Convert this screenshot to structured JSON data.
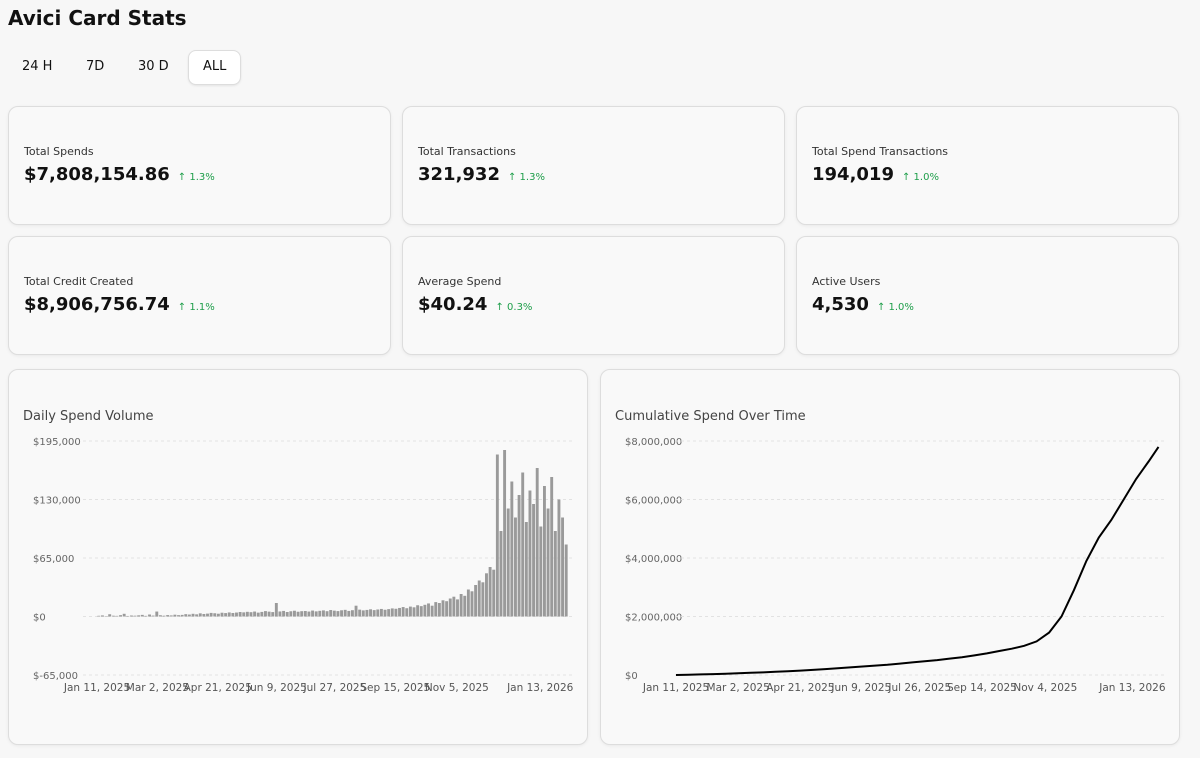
{
  "title": "Avici Card Stats",
  "tabs": [
    "24 H",
    "7D",
    "30 D",
    "ALL"
  ],
  "active_tab": 3,
  "cards": [
    {
      "label": "Total Spends",
      "value": "$7,808,154.86",
      "change": "1.3%"
    },
    {
      "label": "Total Transactions",
      "value": "321,932",
      "change": "1.3%"
    },
    {
      "label": "Total Spend Transactions",
      "value": "194,019",
      "change": "1.0%"
    },
    {
      "label": "Total Credit Created",
      "value": "$8,906,756.74",
      "change": "1.1%"
    },
    {
      "label": "Average Spend",
      "value": "$40.24",
      "change": "0.3%"
    },
    {
      "label": "Active Users",
      "value": "4,530",
      "change": "1.0%"
    }
  ],
  "chart_data": [
    {
      "type": "bar",
      "title": "Daily Spend Volume",
      "color": "#9a9a9a",
      "grid": true,
      "values": [
        800,
        1200,
        500,
        2500,
        900,
        700,
        1500,
        3000,
        600,
        1100,
        900,
        1300,
        1800,
        700,
        2200,
        1000,
        5500,
        1400,
        900,
        1600,
        1200,
        2000,
        1500,
        1800,
        2600,
        2200,
        3000,
        2400,
        3500,
        2800,
        3200,
        4000,
        3600,
        3100,
        4200,
        3800,
        4500,
        3900,
        4400,
        5000,
        4600,
        5200,
        4800,
        5500,
        4300,
        5100,
        6000,
        5400,
        4900,
        15000,
        5600,
        6200,
        5000,
        5800,
        6400,
        5300,
        5900,
        6100,
        5500,
        6600,
        5700,
        6300,
        6800,
        5900,
        7200,
        6500,
        6000,
        6900,
        7400,
        6200,
        7000,
        12000,
        7600,
        6800,
        7300,
        8000,
        7100,
        7800,
        8400,
        7500,
        8200,
        9000,
        8600,
        9500,
        10500,
        9200,
        11000,
        10200,
        12500,
        11500,
        13000,
        14500,
        12000,
        16000,
        15000,
        18000,
        17000,
        20000,
        22000,
        19000,
        25000,
        23000,
        30000,
        28000,
        35000,
        40000,
        38000,
        48000,
        55000,
        52000,
        180000,
        95000,
        185000,
        120000,
        150000,
        110000,
        135000,
        160000,
        105000,
        140000,
        125000,
        165000,
        100000,
        145000,
        120000,
        155000,
        95000,
        130000,
        110000,
        80000
      ],
      "xlim": [
        0,
        130
      ],
      "xticks": [
        {
          "value": 0,
          "label": "Jan 11, 2025"
        },
        {
          "value": 16.67,
          "label": "Mar 2, 2025"
        },
        {
          "value": 33.33,
          "label": "Apr 21, 2025"
        },
        {
          "value": 49.67,
          "label": "Jun 9, 2025"
        },
        {
          "value": 65.67,
          "label": "Jul 27, 2025"
        },
        {
          "value": 82.33,
          "label": "Sep 15, 2025"
        },
        {
          "value": 99.33,
          "label": "Nov 5, 2025"
        },
        {
          "value": 122.33,
          "label": "Jan 13, 2026"
        }
      ],
      "ylim": [
        -65000,
        195000
      ],
      "yticks": [
        {
          "value": -65000,
          "label": "$-65,000"
        },
        {
          "value": 0,
          "label": "$0"
        },
        {
          "value": 65000,
          "label": "$65,000"
        },
        {
          "value": 130000,
          "label": "$130,000"
        },
        {
          "value": 195000,
          "label": "$195,000"
        }
      ]
    },
    {
      "type": "line",
      "title": "Cumulative Spend Over Time",
      "color": "#000000",
      "grid": true,
      "x": [
        0,
        10,
        20,
        30,
        40,
        50,
        60,
        70,
        80,
        90,
        100,
        110,
        120,
        130,
        140,
        150,
        160,
        170,
        180,
        190,
        200,
        210,
        220,
        230,
        240,
        250,
        260,
        270,
        280,
        290,
        300,
        310,
        320,
        330,
        340,
        350,
        360,
        370,
        380,
        388
      ],
      "values": [
        0,
        10000,
        20000,
        30000,
        45000,
        60000,
        75000,
        90000,
        110000,
        130000,
        150000,
        175000,
        200000,
        230000,
        260000,
        290000,
        320000,
        350000,
        390000,
        430000,
        470000,
        510000,
        560000,
        610000,
        670000,
        740000,
        820000,
        900000,
        1000000,
        1150000,
        1450000,
        2000000,
        2900000,
        3900000,
        4700000,
        5300000,
        6000000,
        6700000,
        7300000,
        7800000
      ],
      "xlim": [
        0,
        390
      ],
      "xticks": [
        {
          "value": 0,
          "label": "Jan 11, 2025"
        },
        {
          "value": 50,
          "label": "Mar 2, 2025"
        },
        {
          "value": 100,
          "label": "Apr 21, 2025"
        },
        {
          "value": 149,
          "label": "Jun 9, 2025"
        },
        {
          "value": 196,
          "label": "Jul 26, 2025"
        },
        {
          "value": 246,
          "label": "Sep 14, 2025"
        },
        {
          "value": 297,
          "label": "Nov 4, 2025"
        },
        {
          "value": 367,
          "label": "Jan 13, 2026"
        }
      ],
      "ylim": [
        0,
        8000000
      ],
      "yticks": [
        {
          "value": 0,
          "label": "$0"
        },
        {
          "value": 2000000,
          "label": "$2,000,000"
        },
        {
          "value": 4000000,
          "label": "$4,000,000"
        },
        {
          "value": 6000000,
          "label": "$6,000,000"
        },
        {
          "value": 8000000,
          "label": "$8,000,000"
        }
      ]
    }
  ]
}
